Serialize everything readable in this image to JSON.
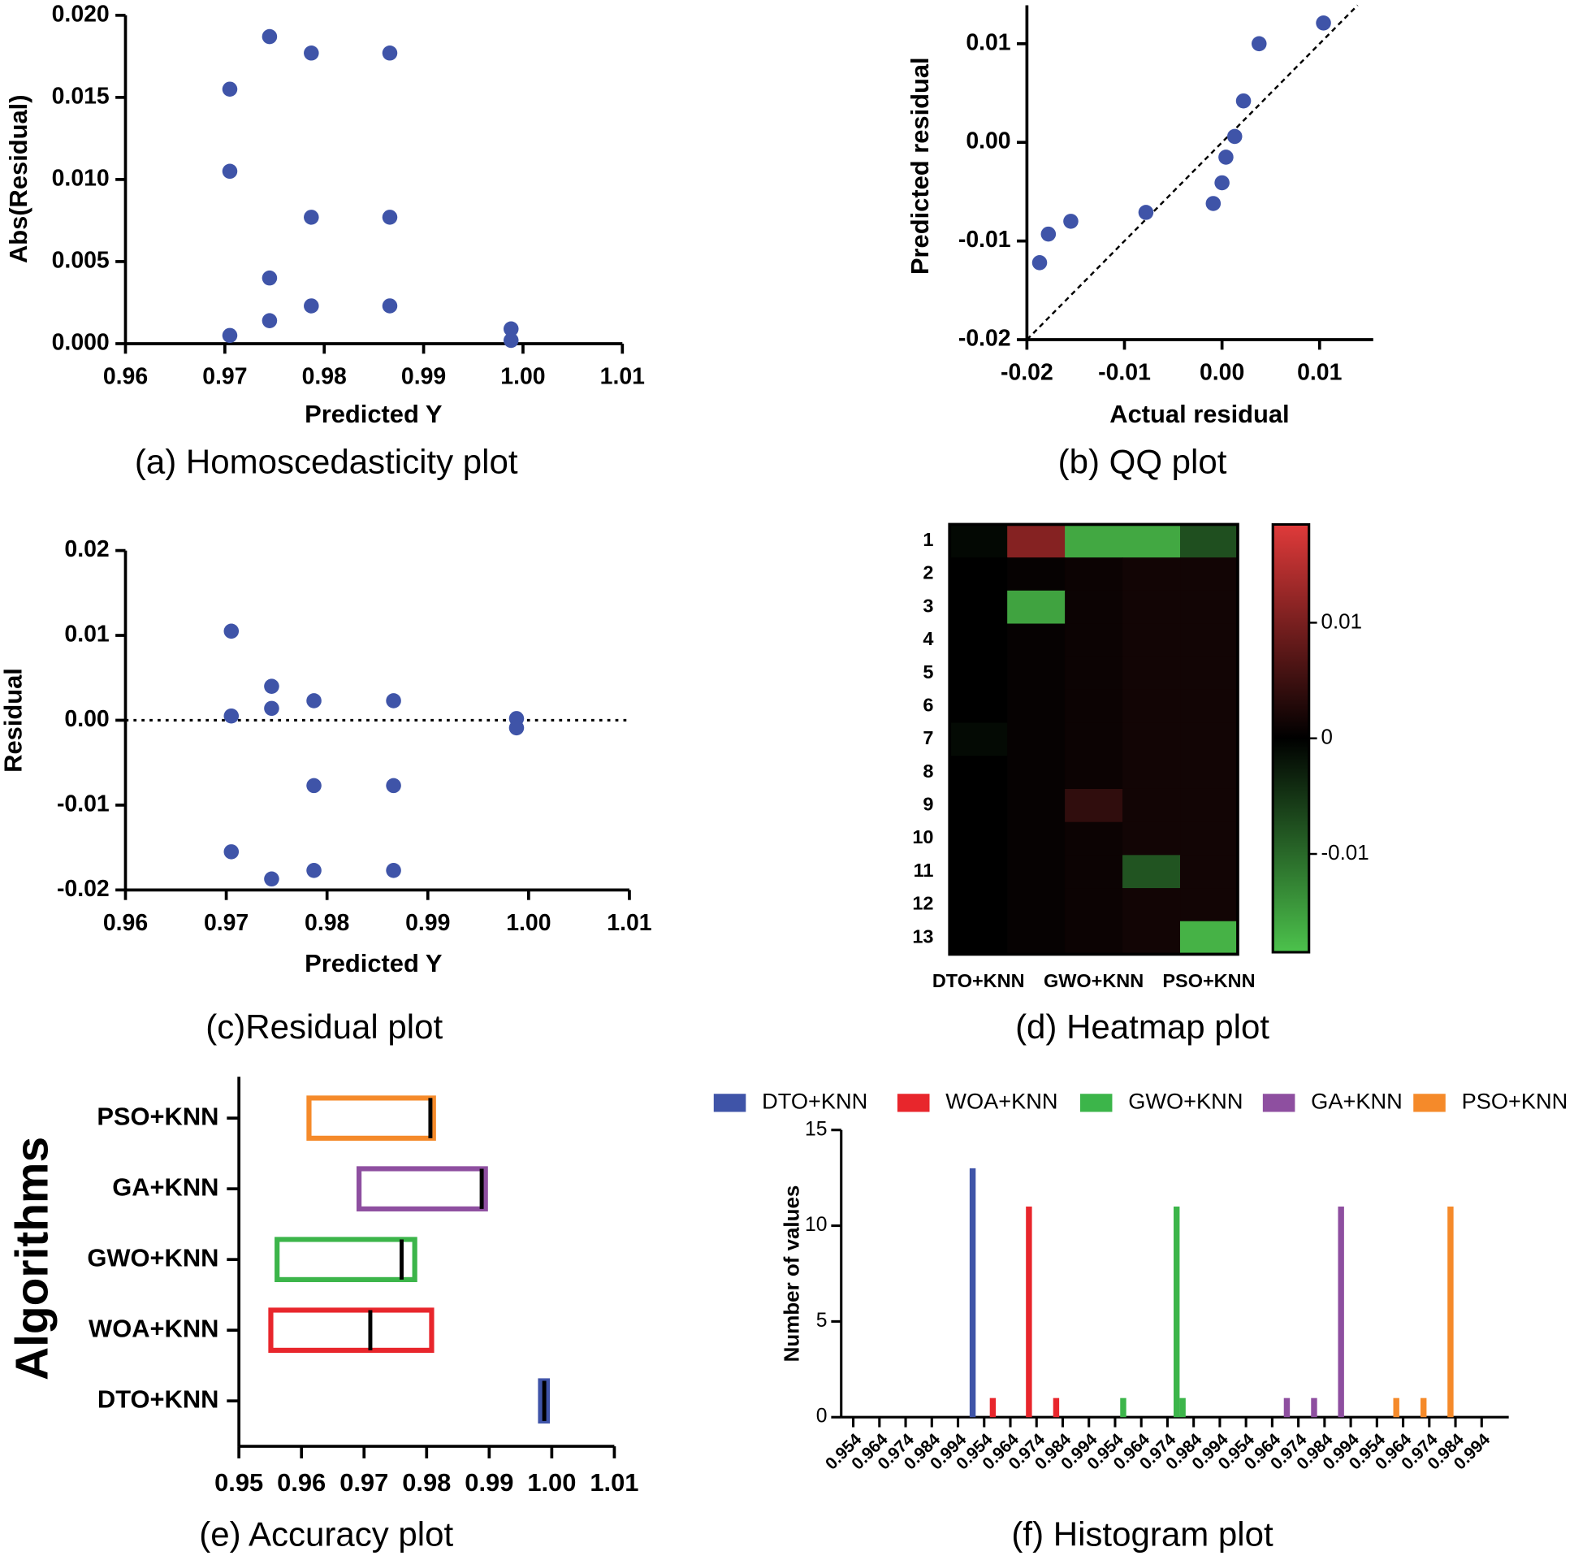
{
  "chart_data": [
    {
      "type": "scatter",
      "caption": "(a) Homoscedasticity plot",
      "xlabel": "Predicted Y",
      "ylabel": "Abs(Residual)",
      "color": "#3f54a8",
      "x": [
        0.9745,
        0.9787,
        0.9866,
        0.9705,
        0.9705,
        0.9787,
        0.9866,
        0.9745,
        0.9787,
        0.9866,
        0.9745,
        0.9705,
        0.9988,
        0.9988
      ],
      "values": [
        0.0187,
        0.0177,
        0.0177,
        0.0155,
        0.0105,
        0.0077,
        0.0077,
        0.004,
        0.0023,
        0.0023,
        0.0014,
        0.0005,
        0.0009,
        0.0002
      ],
      "xlim": [
        0.96,
        1.01
      ],
      "ylim": [
        0,
        0.02
      ],
      "xticks": [
        0.96,
        0.97,
        0.98,
        0.99,
        {
          "value": 1,
          "label": "1.00"
        },
        1.01
      ],
      "yticks": [
        {
          "value": 0,
          "label": "0.000"
        },
        0.005,
        {
          "value": 0.01,
          "label": "0.010"
        },
        0.015,
        {
          "value": 0.02,
          "label": "0.020"
        }
      ]
    },
    {
      "type": "scatter",
      "caption": "(b) QQ plot",
      "xlabel": "Actual residual",
      "ylabel": "Predicted residual",
      "color": "#3f54a8",
      "identity_line_color": "#e8262c",
      "x": [
        -0.0187,
        -0.0178,
        -0.0155,
        -0.0078,
        -0.0009,
        0,
        0.0004,
        0.0013,
        0.0022,
        0.0038,
        0.0104
      ],
      "values": [
        -0.0122,
        -0.0093,
        -0.008,
        -0.0071,
        -0.0062,
        -0.0041,
        -0.0015,
        0.0006,
        0.0042,
        0.01,
        0.0121
      ],
      "xlim": [
        -0.02,
        0.0155
      ],
      "ylim": [
        -0.02,
        0.0139
      ],
      "xticks": [
        -0.02,
        -0.01,
        {
          "value": 0,
          "label": "0.00"
        },
        0.01
      ],
      "yticks": [
        -0.02,
        -0.01,
        {
          "value": 0,
          "label": "0.00"
        },
        0.01
      ]
    },
    {
      "type": "scatter",
      "caption": "(c)Residual plot",
      "xlabel": "Predicted Y",
      "ylabel": "Residual",
      "color": "#3f54a8",
      "zero_line": true,
      "x": [
        0.9705,
        0.9705,
        0.9705,
        0.9745,
        0.9745,
        0.9745,
        0.9787,
        0.9787,
        0.9787,
        0.9866,
        0.9866,
        0.9866,
        0.9988,
        0.9988
      ],
      "values": [
        0.0105,
        0.0005,
        -0.0155,
        0.004,
        0.0014,
        -0.0187,
        0.0023,
        -0.0077,
        -0.0177,
        0.0023,
        -0.0077,
        -0.0177,
        0.0002,
        -0.0009
      ],
      "xlim": [
        0.96,
        1.01
      ],
      "ylim": [
        -0.02,
        0.02
      ],
      "xticks": [
        0.96,
        0.97,
        0.98,
        0.99,
        {
          "value": 1,
          "label": "1.00"
        },
        1.01
      ],
      "yticks": [
        -0.02,
        -0.01,
        {
          "value": 0,
          "label": "0.00"
        },
        0.01,
        0.02
      ]
    },
    {
      "type": "heatmap",
      "caption": "(d) Heatmap plot",
      "categories": [
        "DTO+KNN",
        null,
        "GWO+KNN",
        null,
        "PSO+KNN"
      ],
      "rows": [
        "1",
        "2",
        "3",
        "4",
        "5",
        "6",
        "7",
        "8",
        "9",
        "10",
        "11",
        "12",
        "13"
      ],
      "values": [
        [
          -0.0008,
          0.011,
          -0.016,
          -0.016,
          -0.0075
        ],
        [
          0,
          0.0005,
          0.001,
          0.0015,
          0.0015
        ],
        [
          0,
          -0.0155,
          0.001,
          0.0015,
          0.0015
        ],
        [
          0,
          0.0005,
          0.001,
          0.0015,
          0.0015
        ],
        [
          0,
          0.0005,
          0.001,
          0.0015,
          0.0015
        ],
        [
          0,
          0.0005,
          0.001,
          0.0015,
          0.0015
        ],
        [
          -0.001,
          0.0005,
          0.001,
          0.0015,
          0.0015
        ],
        [
          0,
          0.0005,
          0.001,
          0.0015,
          0.0015
        ],
        [
          0,
          0.0005,
          0.004,
          0.0015,
          0.0015
        ],
        [
          0,
          0.0005,
          0.001,
          0.0015,
          0.0015
        ],
        [
          0,
          0.0005,
          0.001,
          -0.008,
          0.0015
        ],
        [
          0,
          0.0005,
          0.001,
          0.0015,
          0.0015
        ],
        [
          0,
          0.0005,
          0.001,
          0.0015,
          -0.017
        ]
      ],
      "colors": [
        "#4cc24c",
        "#000000",
        "#e03a3a"
      ],
      "zlim": [
        -0.0185,
        0.0185
      ],
      "zticks": [
        0.01,
        0,
        -0.01
      ]
    },
    {
      "type": "floating-bar",
      "caption": "(e) Accuracy plot",
      "ylabel": "Algorithms",
      "categories": [
        "DTO+KNN",
        "WOA+KNN",
        "GWO+KNN",
        "GA+KNN",
        "PSO+KNN"
      ],
      "colors": [
        "#3f54a8",
        "#e8262c",
        "#3cb54a",
        "#8e4fa0",
        "#f58a2a"
      ],
      "low": [
        0.9982,
        0.9551,
        0.9561,
        0.9692,
        0.9612
      ],
      "high": [
        0.9993,
        0.9808,
        0.9781,
        0.9894,
        0.9811
      ],
      "median": [
        0.9988,
        0.971,
        0.976,
        0.9888,
        0.9806
      ],
      "xlim": [
        0.95,
        1.01
      ],
      "xticks": [
        0.95,
        0.96,
        0.97,
        0.98,
        0.99,
        {
          "value": 1,
          "label": "1.00"
        },
        1.01
      ]
    },
    {
      "type": "bar",
      "caption": "(f) Histogram plot",
      "ylabel": "Number of values",
      "legend": "top",
      "series": [
        {
          "name": "DTO+KNN",
          "color": "#3f54a8",
          "x": [
            4.56
          ],
          "values": [
            13
          ]
        },
        {
          "name": "WOA+KNN",
          "color": "#e8262c",
          "x": [
            5.33,
            6.71,
            7.75
          ],
          "values": [
            1,
            11,
            1
          ]
        },
        {
          "name": "GWO+KNN",
          "color": "#3cb54a",
          "x": [
            10.31,
            12.35,
            12.58
          ],
          "values": [
            1,
            11,
            1
          ]
        },
        {
          "name": "GA+KNN",
          "color": "#8e4fa0",
          "x": [
            16.56,
            17.6,
            18.63
          ],
          "values": [
            1,
            1,
            11
          ]
        },
        {
          "name": "PSO+KNN",
          "color": "#f58a2a",
          "x": [
            20.74,
            21.78,
            22.81
          ],
          "values": [
            1,
            1,
            11
          ]
        }
      ],
      "xlim": [
        0,
        24
      ],
      "xticks": [
        {
          "value": 0,
          "label": "0.954"
        },
        {
          "value": 1,
          "label": "0.964"
        },
        {
          "value": 2,
          "label": "0.974"
        },
        {
          "value": 3,
          "label": "0.984"
        },
        {
          "value": 4,
          "label": "0.994"
        },
        {
          "value": 5,
          "label": "0.954"
        },
        {
          "value": 6,
          "label": "0.964"
        },
        {
          "value": 7,
          "label": "0.974"
        },
        {
          "value": 8,
          "label": "0.984"
        },
        {
          "value": 9,
          "label": "0.994"
        },
        {
          "value": 10,
          "label": "0.954"
        },
        {
          "value": 11,
          "label": "0.964"
        },
        {
          "value": 12,
          "label": "0.974"
        },
        {
          "value": 13,
          "label": "0.984"
        },
        {
          "value": 14,
          "label": "0.994"
        },
        {
          "value": 15,
          "label": "0.954"
        },
        {
          "value": 16,
          "label": "0.964"
        },
        {
          "value": 17,
          "label": "0.974"
        },
        {
          "value": 18,
          "label": "0.984"
        },
        {
          "value": 19,
          "label": "0.994"
        },
        {
          "value": 20,
          "label": "0.954"
        },
        {
          "value": 21,
          "label": "0.964"
        },
        {
          "value": 22,
          "label": "0.974"
        },
        {
          "value": 23,
          "label": "0.984"
        },
        {
          "value": 24,
          "label": "0.994"
        }
      ],
      "ylim": [
        0,
        15
      ],
      "yticks": [
        0,
        5,
        10,
        15
      ]
    }
  ]
}
